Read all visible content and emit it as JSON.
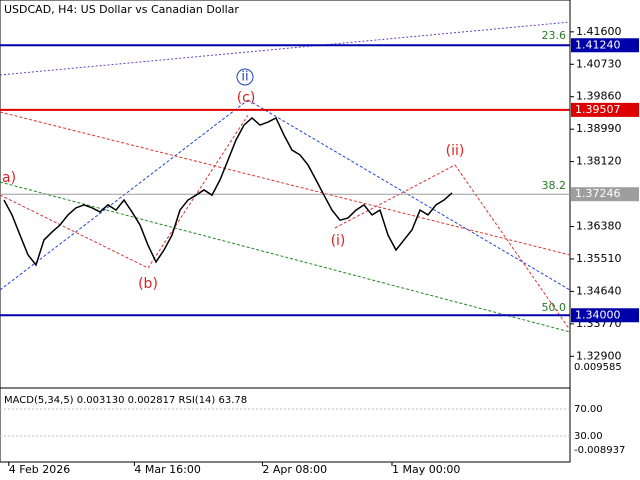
{
  "chart_data": {
    "type": "line",
    "title": "USDCAD, H4:  US Dollar vs Canadian Dollar",
    "series": [
      {
        "name": "USDCAD",
        "color": "#000000",
        "values": [
          1.3709,
          1.3669,
          1.3615,
          1.3562,
          1.3535,
          1.3602,
          1.3623,
          1.3642,
          1.3669,
          1.3688,
          1.3696,
          1.3688,
          1.3677,
          1.3696,
          1.3682,
          1.3709,
          1.3677,
          1.3642,
          1.3588,
          1.3543,
          1.3575,
          1.3615,
          1.3682,
          1.3709,
          1.3722,
          1.3736,
          1.3722,
          1.3763,
          1.3816,
          1.387,
          1.391,
          1.3929,
          1.391,
          1.3918,
          1.3929,
          1.3883,
          1.3843,
          1.383,
          1.3803,
          1.3763,
          1.3722,
          1.3682,
          1.3655,
          1.3661,
          1.3682,
          1.3696,
          1.3669,
          1.3682,
          1.3615,
          1.3575,
          1.3602,
          1.3629,
          1.3682,
          1.3669,
          1.3696,
          1.3709,
          1.3728
        ]
      }
    ],
    "ylim": [
      1.3213,
      1.424
    ],
    "yticks": [
      {
        "value": 1.416,
        "label": "1.41600"
      },
      {
        "value": 1.4073,
        "label": "1.40730"
      },
      {
        "value": 1.3986,
        "label": "1.39860"
      },
      {
        "value": 1.3899,
        "label": "1.38990"
      },
      {
        "value": 1.3812,
        "label": "1.38120"
      },
      {
        "value": 1.3638,
        "label": "1.36380"
      },
      {
        "value": 1.3551,
        "label": "1.35510"
      },
      {
        "value": 1.3464,
        "label": "1.34640"
      },
      {
        "value": 1.3377,
        "label": "1.33770"
      },
      {
        "value": 1.329,
        "label": "1.32900"
      }
    ],
    "xticks": [
      {
        "value": 0.6,
        "label": "4 Feb 2026"
      },
      {
        "value": 16.3,
        "label": "4 Mar 16:00"
      },
      {
        "value": 32.3,
        "label": "2 Apr 08:00"
      },
      {
        "value": 48.5,
        "label": "1 May 00:00"
      }
    ],
    "levels": [
      {
        "value": 1.4124,
        "label": "1.41240",
        "color": "#0000aa"
      },
      {
        "value": 1.39507,
        "label": "1.39507",
        "color": "#dd0000"
      },
      {
        "value": 1.37246,
        "label": "1.37246",
        "color": "#9e9e9e"
      },
      {
        "value": 1.34,
        "label": "1.34000",
        "color": "#0000aa"
      }
    ],
    "annotations": [
      "23.6",
      "38.2",
      "50.0",
      "a)",
      "ii",
      "(c)",
      "(b)",
      "(i)",
      "(ii)"
    ],
    "indicator": {
      "title": "MACD(5,34,5) 0.003130 0.002817 RSI(14) 63.78",
      "labels": [
        "0.009585",
        "70.00",
        "30.00",
        "-0.008937"
      ]
    }
  }
}
